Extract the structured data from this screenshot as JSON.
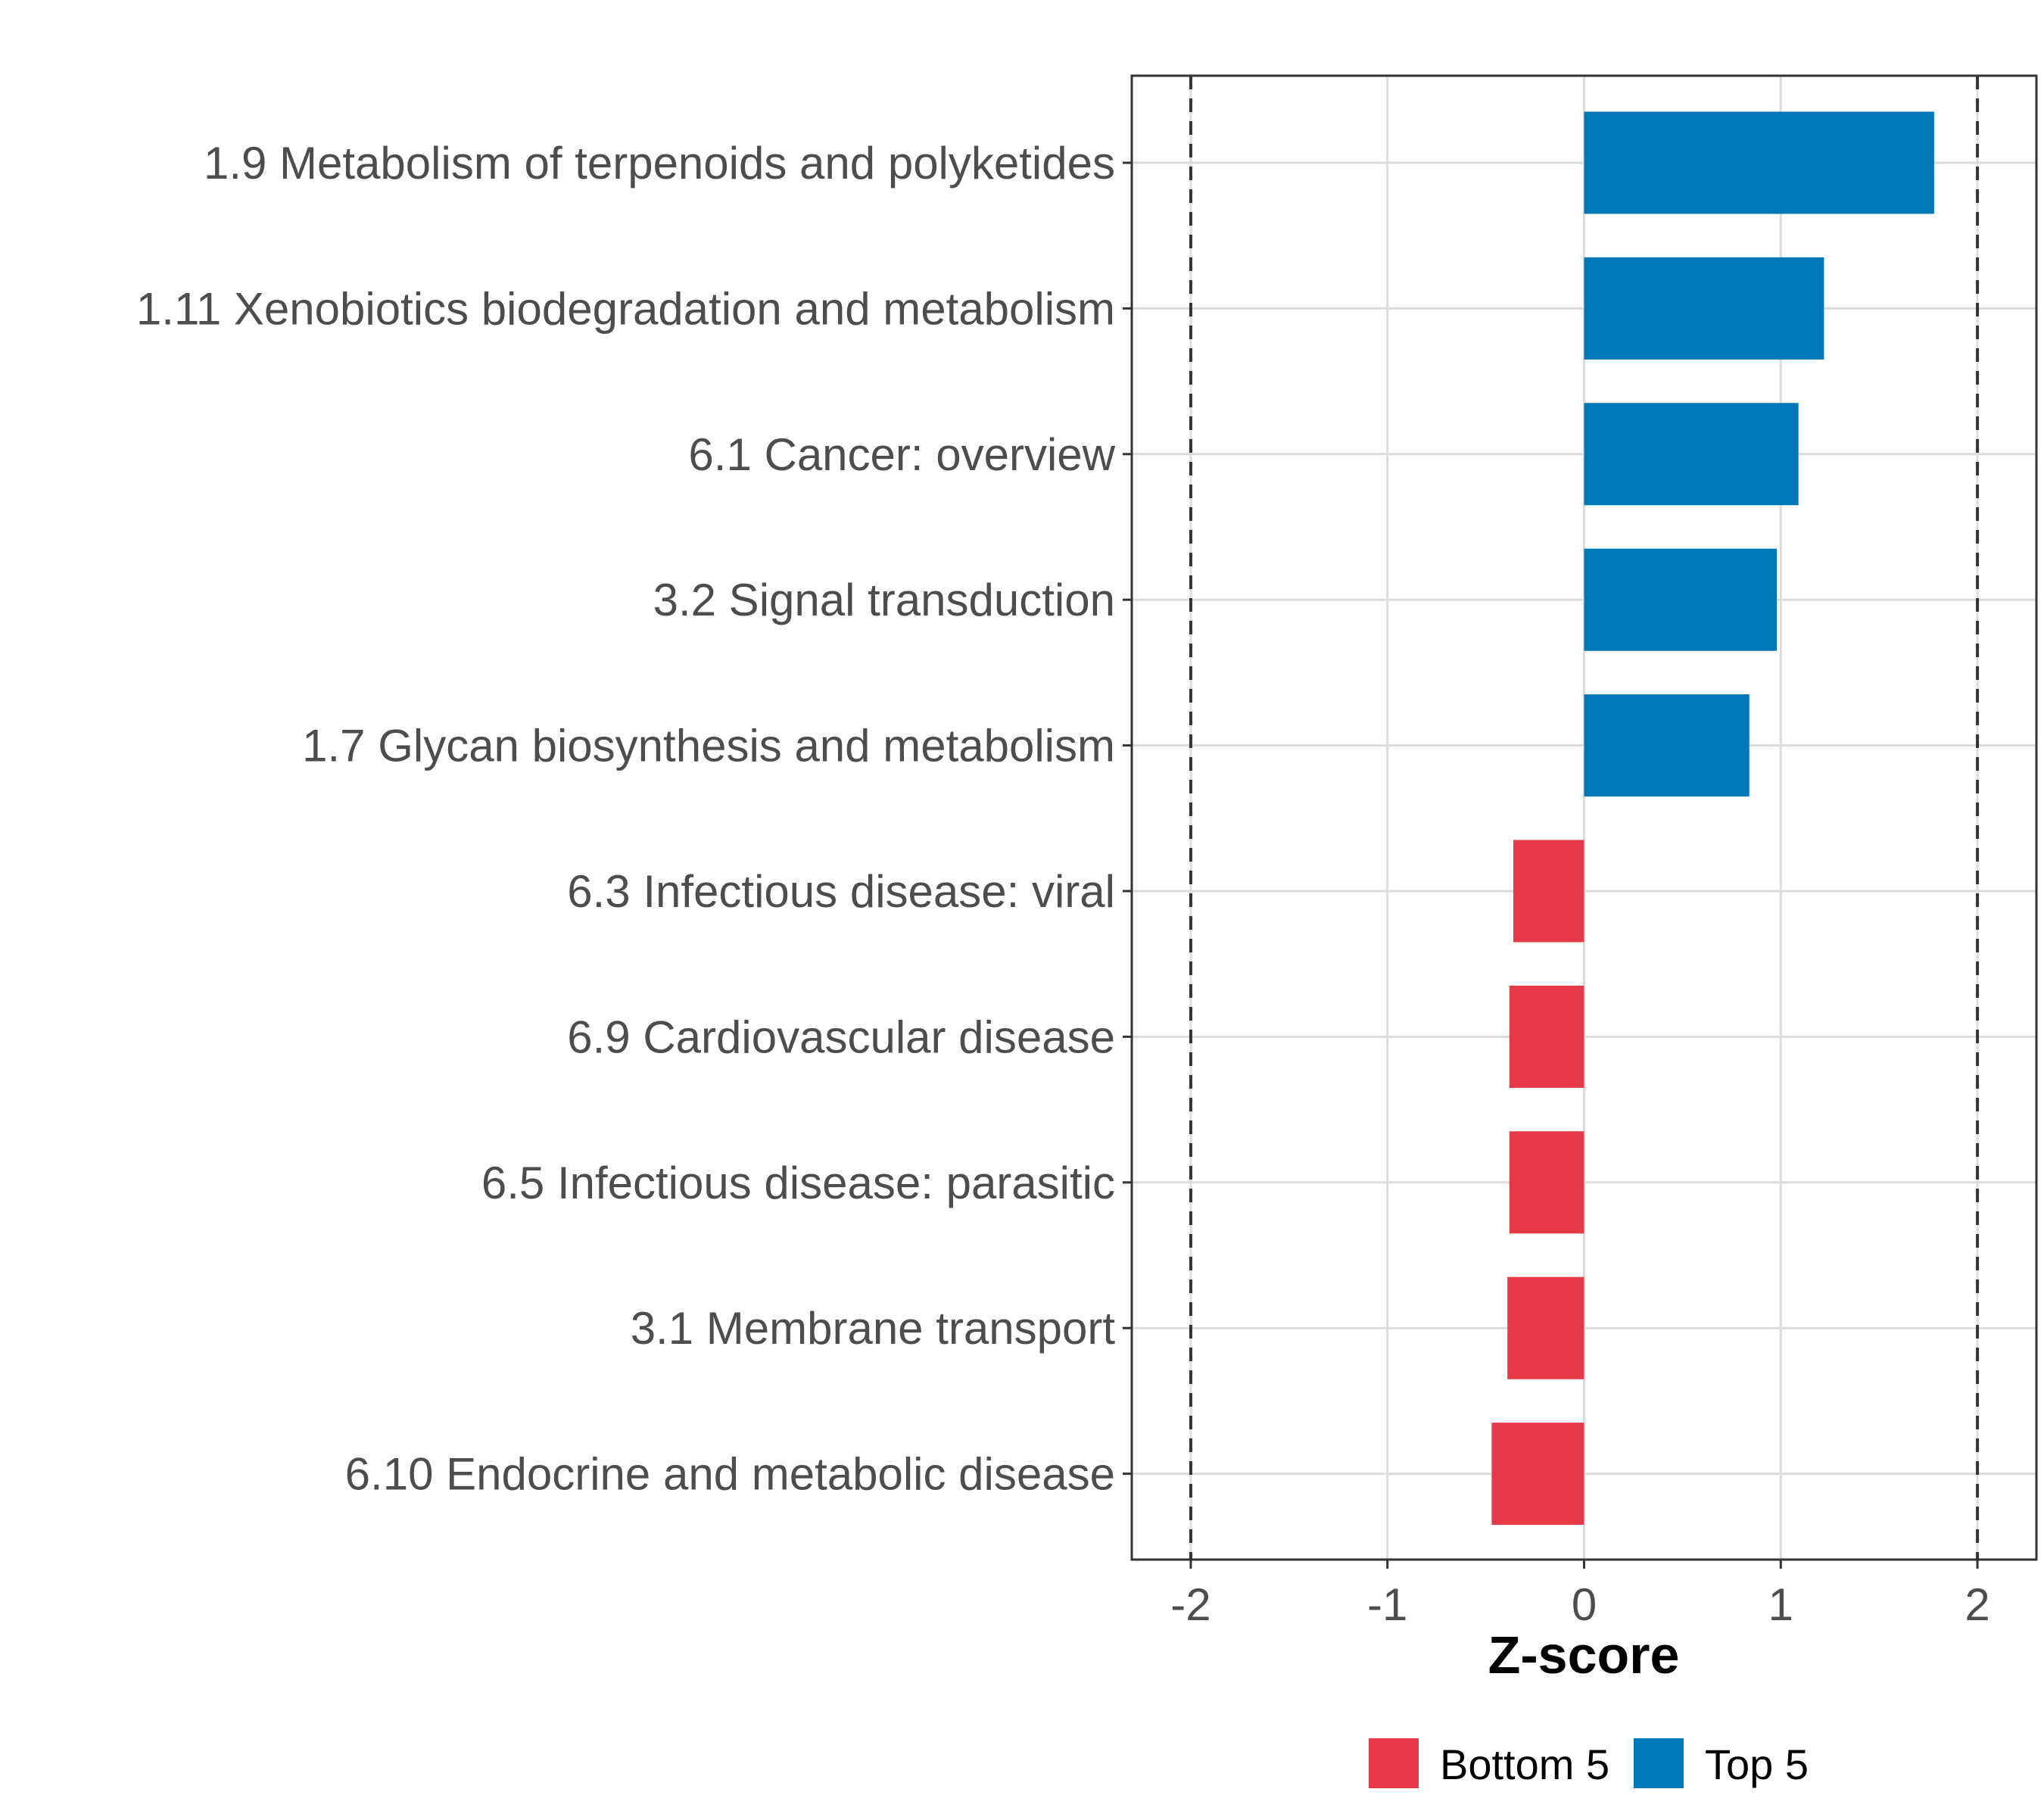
{
  "chart_data": {
    "type": "bar",
    "orientation": "horizontal",
    "title": "",
    "xlabel": "Z-score",
    "ylabel": "",
    "xlim": [
      -2.3,
      2.3
    ],
    "xticks": [
      -2,
      -1,
      0,
      1,
      2
    ],
    "xtick_labels": [
      "-2",
      "-1",
      "0",
      "1",
      "2"
    ],
    "reference_lines": [
      -2,
      2
    ],
    "grid": true,
    "categories": [
      "1.9 Metabolism of terpenoids and polyketides",
      "1.11 Xenobiotics biodegradation and metabolism",
      "6.1 Cancer: overview",
      "3.2 Signal transduction",
      "1.7 Glycan biosynthesis and metabolism",
      "6.3 Infectious disease: viral",
      "6.9 Cardiovascular disease",
      "6.5 Infectious disease: parasitic",
      "3.1 Membrane transport",
      "6.10 Endocrine and metabolic disease"
    ],
    "values": [
      1.78,
      1.22,
      1.09,
      0.98,
      0.84,
      -0.36,
      -0.38,
      -0.38,
      -0.39,
      -0.47
    ],
    "groups": [
      "Top 5",
      "Top 5",
      "Top 5",
      "Top 5",
      "Top 5",
      "Bottom 5",
      "Bottom 5",
      "Bottom 5",
      "Bottom 5",
      "Bottom 5"
    ],
    "legend": [
      {
        "name": "Bottom 5",
        "color": "#e63946"
      },
      {
        "name": "Top 5",
        "color": "#0077b6"
      }
    ],
    "legend_position": "bottom"
  }
}
